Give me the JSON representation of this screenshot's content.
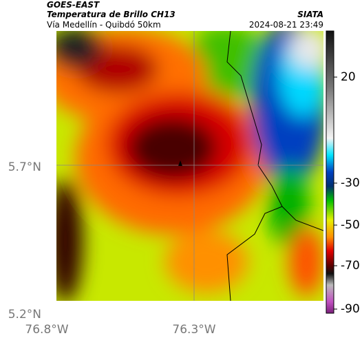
{
  "header": {
    "satellite": "GOES-EAST",
    "product": "Temperatura de Brillo CH13",
    "area": "Vía Medellín - Quibdó 50km",
    "source": "SIATA",
    "datetime": "2024-08-21 23:49"
  },
  "map": {
    "lat_labels": [
      "5.7°N",
      "5.2°N"
    ],
    "lon_labels": [
      "76.8°W",
      "76.3°W"
    ]
  },
  "colorbar": {
    "ticks": [
      20,
      -30,
      -50,
      -70,
      -90
    ]
  }
}
